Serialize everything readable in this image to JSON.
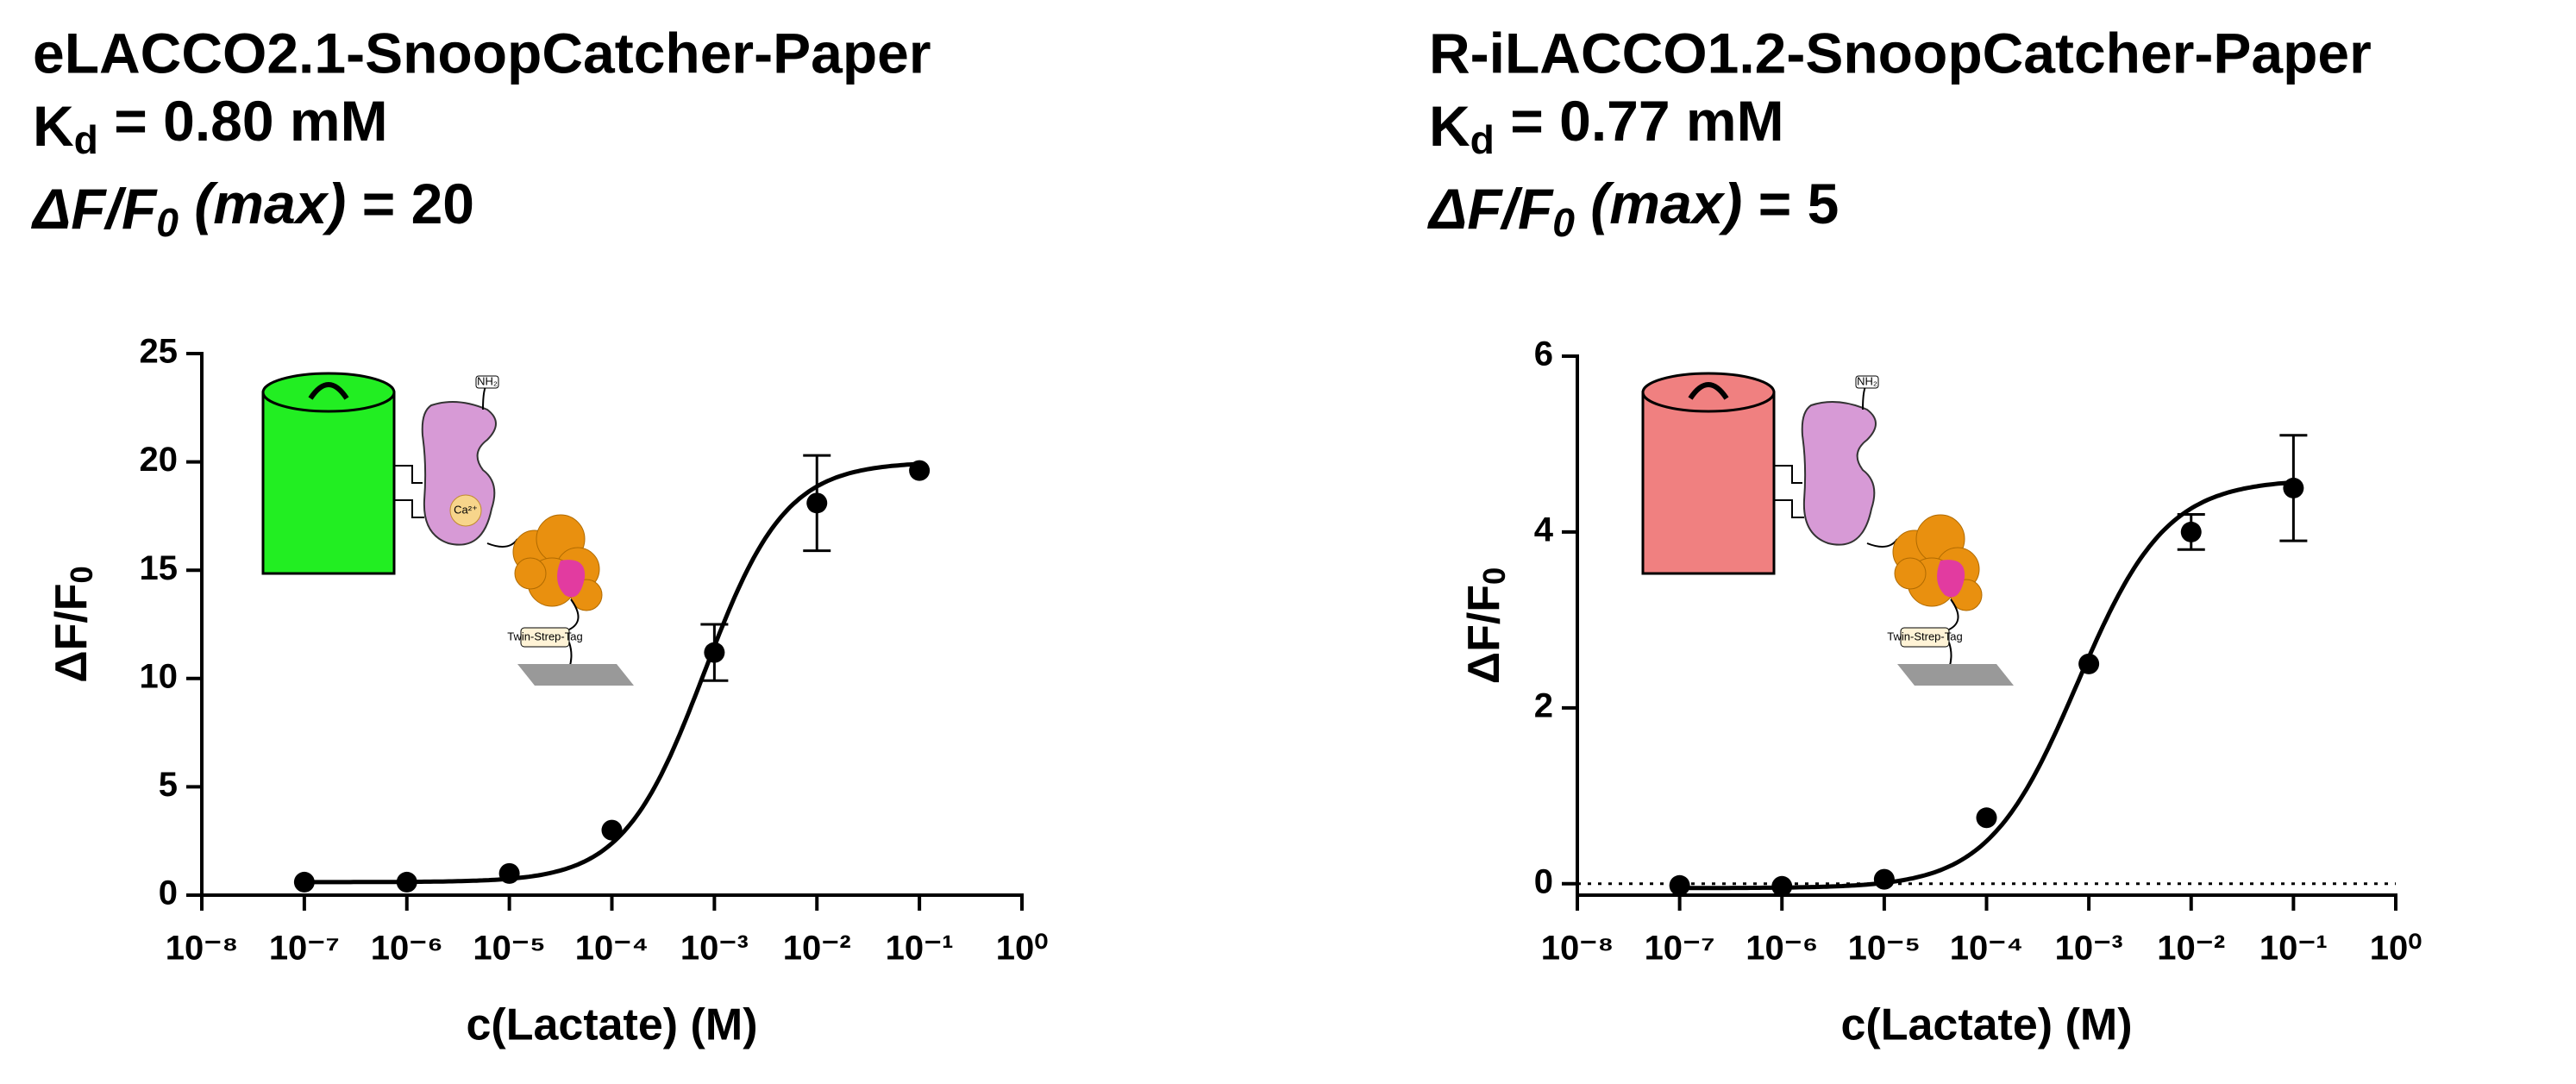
{
  "chart_data": [
    {
      "type": "scatter",
      "title": "eLACCO2.1-SnoopCatcher-Paper",
      "subtitle_lines": [
        [
          {
            "text": "K"
          },
          {
            "text": "d",
            "sub": true
          },
          {
            "text": " = 0.80 mM"
          }
        ],
        [
          {
            "text": "ΔF/F",
            "italic": true
          },
          {
            "text": "0",
            "italic": true,
            "sub": true
          },
          {
            "text": " (max)",
            "italic": true
          },
          {
            "text": " = 20"
          }
        ]
      ],
      "ylabel": [
        {
          "text": "ΔF/F"
        },
        {
          "text": "0",
          "sub": true
        }
      ],
      "xlabel": "c(Lactate) (M)",
      "xscale": "log",
      "x": [
        1e-07,
        1e-06,
        1e-05,
        0.0001,
        0.001,
        0.01,
        0.1
      ],
      "values": [
        0.6,
        0.6,
        1.0,
        3.0,
        11.2,
        18.1,
        19.6
      ],
      "errors": [
        null,
        null,
        null,
        null,
        1.3,
        2.2,
        null
      ],
      "color": "#000000",
      "fit": {
        "bottom": 0.6,
        "top": 20,
        "ec50": 0.0008,
        "hill": 1.1,
        "range": [
          1e-07,
          0.1
        ]
      },
      "xlim": [
        1e-08,
        1
      ],
      "xticks": [
        {
          "value": 1e-08,
          "label": "10⁻⁸"
        },
        {
          "value": 1e-07,
          "label": "10⁻⁷"
        },
        {
          "value": 1e-06,
          "label": "10⁻⁶"
        },
        {
          "value": 1e-05,
          "label": "10⁻⁵"
        },
        {
          "value": 0.0001,
          "label": "10⁻⁴"
        },
        {
          "value": 0.001,
          "label": "10⁻³"
        },
        {
          "value": 0.01,
          "label": "10⁻²"
        },
        {
          "value": 0.1,
          "label": "10⁻¹"
        },
        {
          "value": 1,
          "label": "10⁰"
        }
      ],
      "ylim": [
        0,
        25
      ],
      "yticks": [
        0,
        5,
        10,
        15,
        20,
        25
      ],
      "illustration": {
        "color": "#22ee22",
        "labels": [
          "NH₂",
          "Ca²⁺",
          "Twin-Strep-Tag"
        ]
      }
    },
    {
      "type": "scatter",
      "title": "R-iLACCO1.2-SnoopCatcher-Paper",
      "subtitle_lines": [
        [
          {
            "text": "K"
          },
          {
            "text": "d",
            "sub": true
          },
          {
            "text": " = 0.77 mM"
          }
        ],
        [
          {
            "text": "ΔF/F",
            "italic": true
          },
          {
            "text": "0",
            "italic": true,
            "sub": true
          },
          {
            "text": " (max)",
            "italic": true
          },
          {
            "text": " = 5"
          }
        ]
      ],
      "ylabel": [
        {
          "text": "ΔF/F"
        },
        {
          "text": "0",
          "sub": true
        }
      ],
      "xlabel": "c(Lactate) (M)",
      "xscale": "log",
      "x": [
        1e-07,
        1e-06,
        1e-05,
        0.0001,
        0.001,
        0.01,
        0.1
      ],
      "values": [
        -0.02,
        -0.03,
        0.05,
        0.75,
        2.5,
        4.0,
        4.5
      ],
      "errors": [
        null,
        null,
        null,
        null,
        null,
        0.2,
        0.6
      ],
      "color": "#000000",
      "fit": {
        "bottom": -0.05,
        "top": 4.6,
        "ec50": 0.00077,
        "hill": 1,
        "range": [
          1e-07,
          0.1
        ]
      },
      "reference_line": 0,
      "xlim": [
        1e-08,
        1
      ],
      "xticks": [
        {
          "value": 1e-08,
          "label": "10⁻⁸"
        },
        {
          "value": 1e-07,
          "label": "10⁻⁷"
        },
        {
          "value": 1e-06,
          "label": "10⁻⁶"
        },
        {
          "value": 1e-05,
          "label": "10⁻⁵"
        },
        {
          "value": 0.0001,
          "label": "10⁻⁴"
        },
        {
          "value": 0.001,
          "label": "10⁻³"
        },
        {
          "value": 0.01,
          "label": "10⁻²"
        },
        {
          "value": 0.1,
          "label": "10⁻¹"
        },
        {
          "value": 1,
          "label": "10⁰"
        }
      ],
      "ylim": [
        -0.13,
        6
      ],
      "yticks": [
        0,
        2,
        4,
        6
      ],
      "illustration": {
        "color": "#f08080",
        "labels": [
          "NH₂",
          "Twin-Strep-Tag"
        ]
      }
    }
  ]
}
